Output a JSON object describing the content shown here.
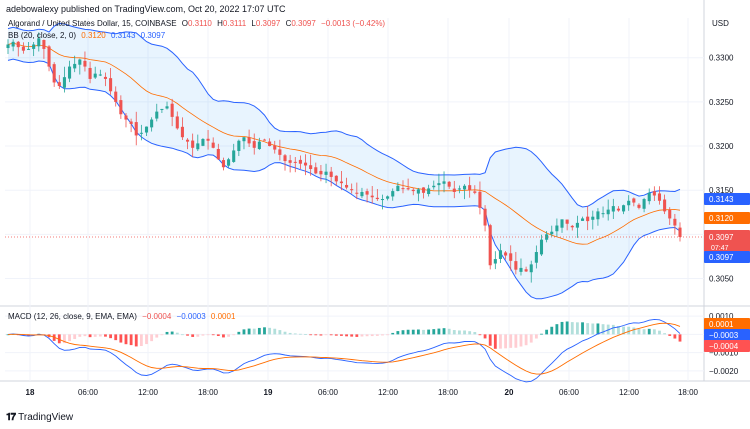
{
  "header": {
    "published_by": "adebowalexy published on TradingView.com, Oct 20, 2022 17:07 UTC"
  },
  "legend": {
    "symbol": "Algorand / United States Dollar, 15, COINBASE",
    "o_label": "O",
    "o_val": "0.3110",
    "h_label": "H",
    "h_val": "0.3111",
    "l_label": "L",
    "l_val": "0.3097",
    "c_label": "C",
    "c_val": "0.3097",
    "change": "−0.0013 (−0.42%)",
    "bb_label": "BB (20, close, 2, 0)",
    "bb_basis": "0.3120",
    "bb_upper": "0.3143",
    "bb_lower": "0.3097",
    "macd_label": "MACD (12, 26, close, 9, EMA, EMA)",
    "macd_hist": "−0.0004",
    "macd_line": "−0.0003",
    "macd_signal": "0.0001"
  },
  "price_axis": {
    "currency": "USD",
    "ticks": [
      "0.3300",
      "0.3250",
      "0.3200",
      "0.3150",
      "0.3050"
    ],
    "badges": {
      "upper": "0.3143",
      "basis": "0.3120",
      "last": "0.3097",
      "countdown": "07:47",
      "lower": "0.3097"
    }
  },
  "macd_axis": {
    "ticks": [
      "0.0010",
      "-0.0010",
      "-0.0020"
    ],
    "badges": {
      "signal": "0.0001",
      "macd": "-0.0003",
      "hist": "-0.0004"
    }
  },
  "time_axis": {
    "labels": [
      "18",
      "06:00",
      "12:00",
      "18:00",
      "19",
      "06:00",
      "12:00",
      "18:00",
      "20",
      "06:00",
      "12:00",
      "18:00"
    ]
  },
  "footer": {
    "brand": "TradingView"
  },
  "colors": {
    "up": "#26a69a",
    "down": "#ef5350",
    "bb_band": "#2962ff",
    "bb_basis": "#ff6d00",
    "bb_fill": "#2196f3",
    "macd": "#2962ff",
    "signal": "#ff6d00",
    "hist_up_strong": "#26a69a",
    "hist_up_weak": "#b2dfdb",
    "hist_down_strong": "#ff5252",
    "hist_down_weak": "#ffcdd2"
  },
  "chart_data": {
    "type": "candlestick",
    "title": "Algorand / United States Dollar, 15, COINBASE",
    "ylim": [
      0.302,
      0.3345
    ],
    "macd_ylim": [
      -0.0025,
      0.0015
    ],
    "x_labels": [
      "18",
      "06:00",
      "12:00",
      "18:00",
      "19",
      "06:00",
      "12:00",
      "18:00",
      "20",
      "06:00",
      "12:00",
      "18:00"
    ],
    "close_path": [
      0.3315,
      0.3318,
      0.3312,
      0.3308,
      0.331,
      0.3315,
      0.3322,
      0.331,
      0.329,
      0.3272,
      0.3268,
      0.3278,
      0.329,
      0.3293,
      0.3298,
      0.329,
      0.3276,
      0.3282,
      0.3281,
      0.3276,
      0.3262,
      0.325,
      0.3236,
      0.323,
      0.3225,
      0.3212,
      0.3215,
      0.3222,
      0.323,
      0.3239,
      0.3242,
      0.3245,
      0.3233,
      0.322,
      0.321,
      0.3205,
      0.3198,
      0.3203,
      0.3208,
      0.3206,
      0.3198,
      0.3185,
      0.3176,
      0.3185,
      0.3195,
      0.3206,
      0.321,
      0.3203,
      0.3198,
      0.3205,
      0.3207,
      0.32,
      0.3196,
      0.319,
      0.3183,
      0.3181,
      0.3182,
      0.318,
      0.3178,
      0.3174,
      0.3169,
      0.3168,
      0.3171,
      0.3165,
      0.316,
      0.3158,
      0.3153,
      0.315,
      0.3146,
      0.3148,
      0.3145,
      0.3142,
      0.314,
      0.314,
      0.3143,
      0.3149,
      0.3155,
      0.3152,
      0.3151,
      0.3149,
      0.3151,
      0.3147,
      0.3152,
      0.3155,
      0.3158,
      0.316,
      0.3154,
      0.3148,
      0.3152,
      0.3155,
      0.315,
      0.3147,
      0.313,
      0.311,
      0.3065,
      0.3072,
      0.3082,
      0.3076,
      0.307,
      0.306,
      0.3062,
      0.3058,
      0.3066,
      0.308,
      0.3094,
      0.31,
      0.3103,
      0.311,
      0.3117,
      0.3112,
      0.3108,
      0.3113,
      0.3118,
      0.3115,
      0.312,
      0.3126,
      0.3124,
      0.3128,
      0.3132,
      0.3127,
      0.3133,
      0.3138,
      0.3136,
      0.313,
      0.314,
      0.3147,
      0.3144,
      0.3138,
      0.3126,
      0.3118,
      0.311,
      0.3097
    ],
    "series": [
      {
        "name": "BB upper",
        "value": 0.3143
      },
      {
        "name": "BB basis",
        "value": 0.312
      },
      {
        "name": "BB lower",
        "value": 0.3097
      },
      {
        "name": "MACD",
        "value": -0.0003
      },
      {
        "name": "Signal",
        "value": 0.0001
      },
      {
        "name": "Histogram",
        "value": -0.0004
      }
    ],
    "grid": true
  }
}
